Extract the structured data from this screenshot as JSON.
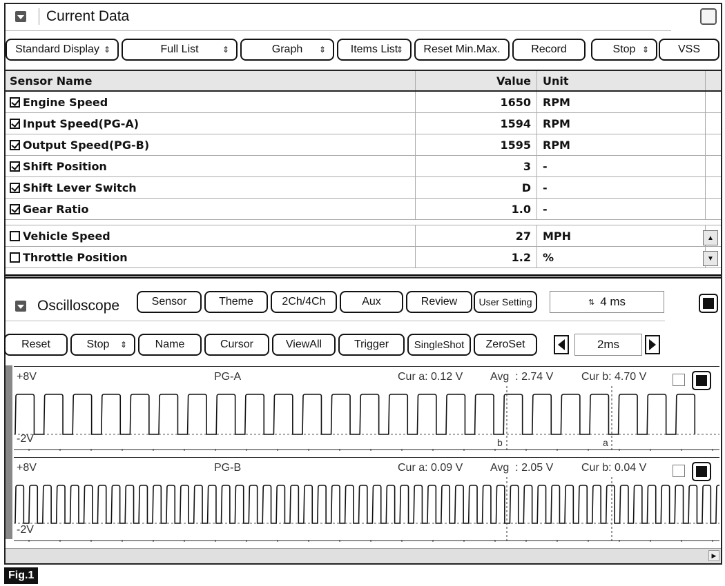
{
  "current_data": {
    "title": "Current Data",
    "toolbar": [
      {
        "label": "Standard Display",
        "spinner": true
      },
      {
        "label": "Full List",
        "spinner": true
      },
      {
        "label": "Graph",
        "spinner": true
      },
      {
        "label": "Items List",
        "spinner": true
      },
      {
        "label": "Reset Min.Max.",
        "spinner": false
      },
      {
        "label": "Record",
        "spinner": false
      },
      {
        "label": "Stop",
        "spinner": true
      },
      {
        "label": "VSS",
        "spinner": false
      }
    ],
    "columns": {
      "name": "Sensor Name",
      "value": "Value",
      "unit": "Unit"
    },
    "rows": [
      {
        "name": "Engine Speed",
        "value": "1650",
        "unit": "RPM",
        "checked": true
      },
      {
        "name": "Input Speed(PG-A)",
        "value": "1594",
        "unit": "RPM",
        "checked": true
      },
      {
        "name": "Output Speed(PG-B)",
        "value": "1595",
        "unit": "RPM",
        "checked": true
      },
      {
        "name": "Shift Position",
        "value": "3",
        "unit": "-",
        "checked": true
      },
      {
        "name": "Shift Lever Switch",
        "value": "D",
        "unit": "-",
        "checked": true
      },
      {
        "name": "Gear Ratio",
        "value": "1.0",
        "unit": "-",
        "checked": true
      },
      {
        "name": "Vehicle Speed",
        "value": "27",
        "unit": "MPH",
        "checked": false
      },
      {
        "name": "Throttle Position",
        "value": "1.2",
        "unit": "%",
        "checked": false
      }
    ]
  },
  "oscilloscope": {
    "title": "Oscilloscope",
    "tabs": [
      "Sensor",
      "Theme",
      "2Ch/4Ch",
      "Aux",
      "Review",
      "User Setting"
    ],
    "time_display": "4 ms",
    "controls": [
      {
        "label": "Reset",
        "spinner": false
      },
      {
        "label": "Stop",
        "spinner": true
      },
      {
        "label": "Name",
        "spinner": false
      },
      {
        "label": "Cursor",
        "spinner": false
      },
      {
        "label": "ViewAll",
        "spinner": false
      },
      {
        "label": "Trigger",
        "spinner": false
      },
      {
        "label": "SingleShot",
        "spinner": false
      },
      {
        "label": "ZeroSet",
        "spinner": false
      }
    ],
    "range": "2ms",
    "channels": [
      {
        "name": "PG-A",
        "top": "+8V",
        "bottom": "-2V",
        "cur_a": "Cur a: 0.12 V",
        "avg": "Avg  : 2.74 V",
        "cur_b": "Cur b: 4.70 V",
        "marker_b": "b",
        "marker_a": "a"
      },
      {
        "name": "PG-B",
        "top": "+8V",
        "bottom": "-2V",
        "cur_a": "Cur a: 0.09 V",
        "avg": "Avg  : 2.05 V",
        "cur_b": "Cur b: 0.04 V",
        "marker_b": "",
        "marker_a": ""
      }
    ]
  },
  "figure_label": "Fig.1"
}
